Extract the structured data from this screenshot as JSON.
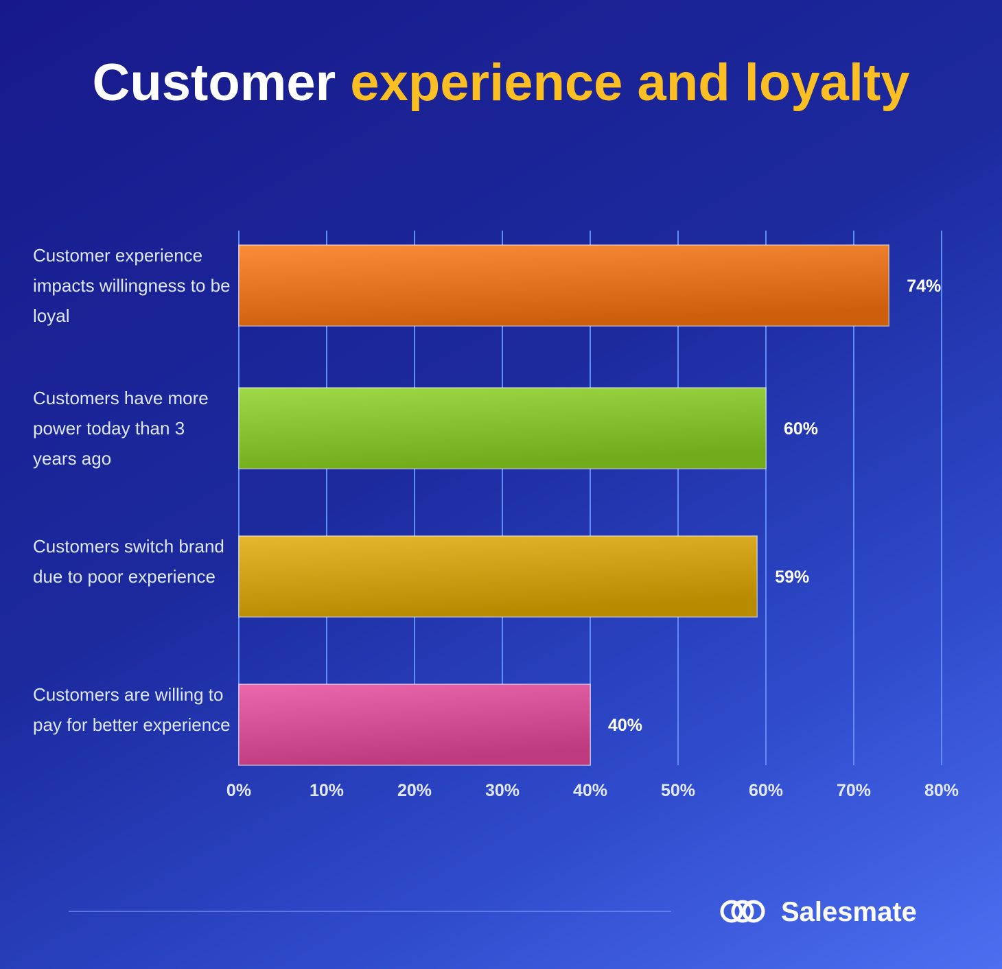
{
  "chart_data": {
    "type": "hbar",
    "title": "Customer",
    "title_highlight": "experience and loyalty",
    "categories": [
      "Customer experience impacts willingness to be loyal",
      "Customers have more power today than 3 years ago",
      "Customers switch brand due to poor experience",
      "Customers are willing to pay for better experience"
    ],
    "values": [
      74,
      60,
      59,
      40
    ],
    "value_labels": [
      "74%",
      "60%",
      "59%",
      "40%"
    ],
    "colors": [
      "#f9730f",
      "#8ad11f",
      "#dfa800",
      "#e8479a"
    ],
    "xlim": [
      0,
      80
    ],
    "xticks": [
      {
        "value": 0,
        "label": "0%"
      },
      {
        "value": 10,
        "label": "10%"
      },
      {
        "value": 20,
        "label": "20%"
      },
      {
        "value": 30,
        "label": "30%"
      },
      {
        "value": 40,
        "label": "40%"
      },
      {
        "value": 50,
        "label": "50%"
      },
      {
        "value": 60,
        "label": "60%"
      },
      {
        "value": 70,
        "label": "70%"
      },
      {
        "value": 80,
        "label": "80%"
      }
    ],
    "grid": true
  },
  "brand": "Salesmate"
}
